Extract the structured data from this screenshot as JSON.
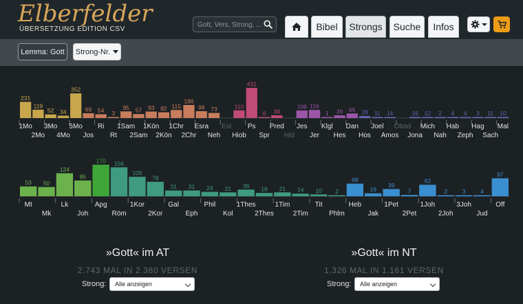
{
  "header": {
    "logo_script": "Elberfelder",
    "logo_sub": "ÜBERSETZUNG EDITION CSV",
    "search_placeholder": "Gott, Vers, Strong, ...",
    "nav": [
      {
        "label": "",
        "icon": "home-icon"
      },
      {
        "label": "Bibel"
      },
      {
        "label": "Strongs",
        "active": true
      },
      {
        "label": "Suche"
      },
      {
        "label": "Infos"
      }
    ],
    "gear_icon": "gear-icon",
    "cart_icon": "cart-icon"
  },
  "toolbar": {
    "lemma_label": "Lemma: Gott",
    "strong_label": "Strong-Nr."
  },
  "chart_data": [
    {
      "type": "bar",
      "title": "",
      "categories": [
        "1Mo",
        "2Mo",
        "3Mo",
        "4Mo",
        "5Mo",
        "Jos",
        "Ri",
        "Rt",
        "1Sam",
        "2Sam",
        "1Kön",
        "2Kön",
        "1Chr",
        "2Chr",
        "Esra",
        "Neh",
        "Est",
        "Hiob",
        "Ps",
        "Spr",
        "Pred",
        "Hld",
        "Jes",
        "Jer",
        "Klgl",
        "Hes",
        "Dan",
        "Hos",
        "Joel",
        "Amos",
        "Obad",
        "Jona",
        "Mich",
        "Nah",
        "Hab",
        "Zeph",
        "Hag",
        "Sach",
        "Mal"
      ],
      "values": [
        231,
        119,
        52,
        34,
        352,
        69,
        54,
        3,
        95,
        57,
        93,
        82,
        115,
        186,
        98,
        73,
        0,
        110,
        431,
        6,
        39,
        0,
        108,
        116,
        1,
        39,
        65,
        28,
        11,
        14,
        0,
        16,
        12,
        2,
        4,
        4,
        3,
        11,
        10
      ],
      "colors": [
        "#c8a74c",
        "#c8a74c",
        "#c8a74c",
        "#c8a74c",
        "#c8a74c",
        "#c87d5c",
        "#c87d5c",
        "#c87d5c",
        "#c87d5c",
        "#c87d5c",
        "#c87d5c",
        "#c87d5c",
        "#c87d5c",
        "#c87d5c",
        "#c87d5c",
        "#c87d5c",
        "#c87d5c",
        "#c04b74",
        "#c04b74",
        "#c04b74",
        "#c04b74",
        "#c04b74",
        "#9b56a8",
        "#9b56a8",
        "#9b56a8",
        "#9b56a8",
        "#9b56a8",
        "#6b66b4",
        "#6b66b4",
        "#6b66b4",
        "#6b66b4",
        "#6b66b4",
        "#6b66b4",
        "#6b66b4",
        "#6b66b4",
        "#6b66b4",
        "#6b66b4",
        "#6b66b4",
        "#6b66b4"
      ],
      "muted_labels": [
        "Est",
        "Hld",
        "Obad"
      ]
    },
    {
      "type": "bar",
      "title": "",
      "categories": [
        "Mt",
        "Mk",
        "Lk",
        "Joh",
        "Apg",
        "Röm",
        "1Kor",
        "2Kor",
        "Gal",
        "Eph",
        "Phil",
        "Kol",
        "1Thes",
        "2Thes",
        "1Tim",
        "2Tim",
        "Tit",
        "Phlm",
        "Heb",
        "Jak",
        "1Pet",
        "2Pet",
        "1Joh",
        "2Joh",
        "3Joh",
        "Jud",
        "Off"
      ],
      "values": [
        53,
        50,
        124,
        85,
        170,
        156,
        105,
        78,
        31,
        31,
        24,
        21,
        36,
        18,
        21,
        14,
        10,
        2,
        68,
        16,
        39,
        7,
        62,
        2,
        3,
        4,
        97
      ],
      "colors": [
        "#6cb24c",
        "#6cb24c",
        "#6cb24c",
        "#6cb24c",
        "#3fa63a",
        "#3e9b80",
        "#3e9b80",
        "#3e9b80",
        "#3e9b80",
        "#3e9b80",
        "#3e9b80",
        "#3e9b80",
        "#3e9b80",
        "#3e9b80",
        "#3e9b80",
        "#3e9b80",
        "#3e9b80",
        "#3e9b80",
        "#3a8fd0",
        "#3a8fd0",
        "#3a8fd0",
        "#3a8fd0",
        "#3a8fd0",
        "#3a8fd0",
        "#3a8fd0",
        "#3a8fd0",
        "#3a8fd0"
      ],
      "muted_labels": []
    }
  ],
  "summary": {
    "at": {
      "title": "»Gott« im AT",
      "subtitle": "2.743 MAL IN 2.380 VERSEN",
      "strong_label": "Strong:",
      "select_value": "Alle anzeigen"
    },
    "nt": {
      "title": "»Gott« im NT",
      "subtitle": "1.326 MAL IN 1.161 VERSEN",
      "strong_label": "Strong:",
      "select_value": "Alle anzeigen"
    }
  }
}
